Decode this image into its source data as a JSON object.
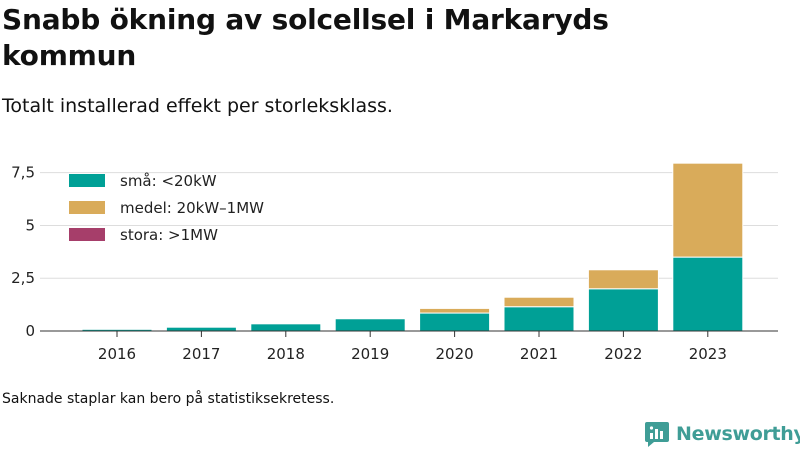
{
  "title": "Snabb ökning av solcellsel i Markaryds kommun",
  "subtitle": "Totalt installerad effekt per storleksklass.",
  "footnote": "Saknade staplar kan bero på statistiksekretess.",
  "brand": {
    "name": "Newsworthy",
    "icon": "newsworthy-logo-icon"
  },
  "colors": {
    "small": "#00a096",
    "medium": "#d9ab5a",
    "large": "#a63e6a",
    "grid": "#dddddd",
    "axis": "#333333"
  },
  "chart_data": {
    "type": "bar",
    "stacked": true,
    "title": "Snabb ökning av solcellsel i Markaryds kommun",
    "subtitle": "Totalt installerad effekt per storleksklass.",
    "xlabel": "",
    "ylabel": "",
    "categories": [
      "2016",
      "2017",
      "2018",
      "2019",
      "2020",
      "2021",
      "2022",
      "2023"
    ],
    "series": [
      {
        "name": "små: <20kW",
        "color": "#00a096",
        "values": [
          0.08,
          0.18,
          0.34,
          0.58,
          0.85,
          1.15,
          2.0,
          3.5
        ]
      },
      {
        "name": "medel: 20kW–1MW",
        "color": "#d9ab5a",
        "values": [
          0,
          0,
          0,
          0,
          0.22,
          0.45,
          0.9,
          4.45
        ]
      },
      {
        "name": "stora: >1MW",
        "color": "#a63e6a",
        "values": [
          0,
          0,
          0,
          0,
          0,
          0,
          0,
          0
        ]
      }
    ],
    "ylim": [
      0,
      8.1
    ],
    "yticks": [
      0,
      2.5,
      5,
      7.5
    ],
    "ytick_labels": [
      "0",
      "2,5",
      "5",
      "7,5"
    ],
    "grid": true,
    "legend": "top-left"
  }
}
